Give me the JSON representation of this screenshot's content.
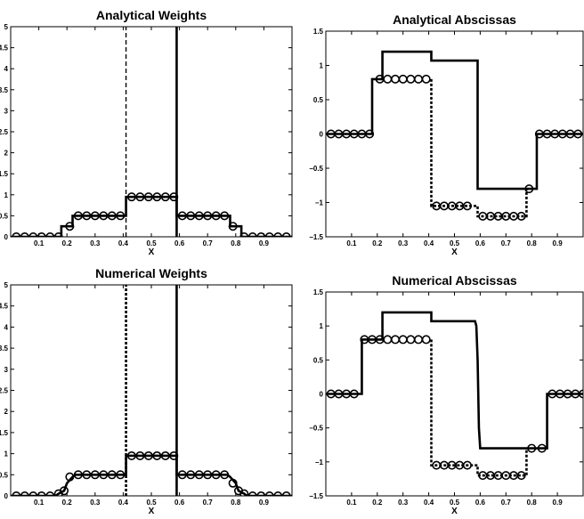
{
  "chart_data": [
    {
      "type": "line",
      "title": "Analytical Weights",
      "xlabel": "X",
      "xlim": [
        0,
        1
      ],
      "ylim": [
        0,
        5
      ],
      "xticks": [
        "0.1",
        "0.2",
        "0.3",
        "0.4",
        "0.5",
        "0.6",
        "0.7",
        "0.8",
        "0.9"
      ],
      "yticks": [
        "0",
        "0.5",
        "1",
        "1.5",
        "2",
        "2.5",
        "3",
        "3.5",
        "4",
        "4.5",
        "5"
      ],
      "series": [
        {
          "style": "solid",
          "x": [
            0,
            0.18,
            0.18,
            0.22,
            0.22,
            0.41,
            0.41,
            0.59,
            0.59,
            0.78,
            0.78,
            0.82,
            0.82,
            1
          ],
          "y": [
            0,
            0,
            0.25,
            0.25,
            0.5,
            0.5,
            0.95,
            0.95,
            0.5,
            0.5,
            0.25,
            0.25,
            0,
            0
          ]
        },
        {
          "style": "solid",
          "x": [
            0.59,
            0.59
          ],
          "y": [
            0,
            5
          ]
        },
        {
          "style": "dashed",
          "x": [
            0.41,
            0.41
          ],
          "y": [
            0,
            5
          ]
        },
        {
          "style": "markers",
          "x": [
            0.02,
            0.05,
            0.08,
            0.11,
            0.14,
            0.17,
            0.21,
            0.24,
            0.27,
            0.3,
            0.33,
            0.36,
            0.39,
            0.43,
            0.46,
            0.49,
            0.52,
            0.55,
            0.58,
            0.61,
            0.64,
            0.67,
            0.7,
            0.73,
            0.76,
            0.79,
            0.83,
            0.86,
            0.89,
            0.92,
            0.95,
            0.98
          ],
          "y": [
            0,
            0,
            0,
            0,
            0,
            0,
            0.25,
            0.5,
            0.5,
            0.5,
            0.5,
            0.5,
            0.5,
            0.95,
            0.95,
            0.95,
            0.95,
            0.95,
            0.95,
            0.5,
            0.5,
            0.5,
            0.5,
            0.5,
            0.5,
            0.25,
            0,
            0,
            0,
            0,
            0,
            0
          ]
        }
      ]
    },
    {
      "type": "line",
      "title": "Analytical Abscissas",
      "xlabel": "X",
      "xlim": [
        0,
        1
      ],
      "ylim": [
        -1.5,
        1.5
      ],
      "xticks": [
        "0.1",
        "0.2",
        "0.3",
        "0.4",
        "0.5",
        "0.6",
        "0.7",
        "0.8",
        "0.9"
      ],
      "yticks": [
        "−1.5",
        "−1",
        "−0.5",
        "0",
        "0.5",
        "1",
        "1.5"
      ],
      "series": [
        {
          "style": "solid",
          "x": [
            0,
            0.18,
            0.18,
            0.22,
            0.22,
            0.41,
            0.41,
            0.59,
            0.59,
            0.78,
            0.78,
            0.82,
            0.82,
            1
          ],
          "y": [
            0,
            0,
            0.8,
            0.8,
            1.2,
            1.2,
            1.07,
            1.07,
            -0.8,
            -0.8,
            -0.8,
            -0.8,
            0,
            0
          ]
        },
        {
          "style": "dotted",
          "x": [
            0.41,
            0.41,
            0.59,
            0.59,
            0.78,
            0.78
          ],
          "y": [
            0.8,
            -1.05,
            -1.05,
            -1.2,
            -1.2,
            -0.8
          ]
        },
        {
          "style": "markers",
          "x": [
            0.02,
            0.05,
            0.08,
            0.11,
            0.14,
            0.17,
            0.21,
            0.24,
            0.27,
            0.3,
            0.33,
            0.36,
            0.39,
            0.43,
            0.46,
            0.49,
            0.52,
            0.55,
            0.61,
            0.64,
            0.67,
            0.7,
            0.73,
            0.76,
            0.79,
            0.83,
            0.86,
            0.89,
            0.92,
            0.95,
            0.98
          ],
          "y": [
            0,
            0,
            0,
            0,
            0,
            0,
            0.8,
            0.8,
            0.8,
            0.8,
            0.8,
            0.8,
            0.8,
            -1.05,
            -1.05,
            -1.05,
            -1.05,
            -1.05,
            -1.2,
            -1.2,
            -1.2,
            -1.2,
            -1.2,
            -1.2,
            -0.8,
            0,
            0,
            0,
            0,
            0,
            0
          ]
        }
      ]
    },
    {
      "type": "line",
      "title": "Numerical Weights",
      "xlabel": "X",
      "xlim": [
        0,
        1
      ],
      "ylim": [
        0,
        5
      ],
      "xticks": [
        "0.1",
        "0.2",
        "0.3",
        "0.4",
        "0.5",
        "0.6",
        "0.7",
        "0.8",
        "0.9"
      ],
      "yticks": [
        "0",
        "0.5",
        "1",
        "1.5",
        "2",
        "2.5",
        "3",
        "3.5",
        "4",
        "4.5",
        "5"
      ],
      "series": [
        {
          "style": "solid",
          "x": [
            0,
            0.16,
            0.17,
            0.19,
            0.2,
            0.22,
            0.23,
            0.41,
            0.41,
            0.59,
            0.59,
            0.77,
            0.78,
            0.8,
            0.81,
            0.83,
            0.84,
            1
          ],
          "y": [
            0,
            0,
            0.05,
            0.12,
            0.3,
            0.45,
            0.5,
            0.5,
            0.95,
            0.95,
            0.5,
            0.5,
            0.45,
            0.3,
            0.12,
            0.05,
            0,
            0
          ]
        },
        {
          "style": "solid",
          "x": [
            0.59,
            0.59
          ],
          "y": [
            0,
            5
          ]
        },
        {
          "style": "dotted",
          "x": [
            0.41,
            0.41
          ],
          "y": [
            0,
            5
          ]
        },
        {
          "style": "markers",
          "x": [
            0.02,
            0.05,
            0.08,
            0.11,
            0.14,
            0.17,
            0.19,
            0.21,
            0.24,
            0.27,
            0.3,
            0.33,
            0.36,
            0.39,
            0.43,
            0.46,
            0.49,
            0.52,
            0.55,
            0.58,
            0.61,
            0.64,
            0.67,
            0.7,
            0.73,
            0.76,
            0.79,
            0.81,
            0.83,
            0.86,
            0.89,
            0.92,
            0.95,
            0.98
          ],
          "y": [
            0,
            0,
            0,
            0,
            0,
            0.05,
            0.12,
            0.45,
            0.5,
            0.5,
            0.5,
            0.5,
            0.5,
            0.5,
            0.95,
            0.95,
            0.95,
            0.95,
            0.95,
            0.95,
            0.5,
            0.5,
            0.5,
            0.5,
            0.5,
            0.5,
            0.3,
            0.12,
            0.05,
            0,
            0,
            0,
            0,
            0
          ]
        }
      ]
    },
    {
      "type": "line",
      "title": "Numerical Abscissas",
      "xlabel": "X",
      "xlim": [
        0,
        1
      ],
      "ylim": [
        -1.5,
        1.5
      ],
      "xticks": [
        "0.1",
        "0.2",
        "0.3",
        "0.4",
        "0.5",
        "0.6",
        "0.7",
        "0.8",
        "0.9"
      ],
      "yticks": [
        "−1.5",
        "−1",
        "−0.5",
        "0",
        "0.5",
        "1",
        "1.5"
      ],
      "series": [
        {
          "style": "solid",
          "x": [
            0,
            0.14,
            0.14,
            0.22,
            0.22,
            0.41,
            0.41,
            0.58,
            0.585,
            0.59,
            0.595,
            0.6,
            0.78,
            0.78,
            0.86,
            0.86,
            1
          ],
          "y": [
            0,
            0,
            0.8,
            0.8,
            1.2,
            1.2,
            1.07,
            1.07,
            1.0,
            0.5,
            -0.5,
            -0.8,
            -0.8,
            -0.8,
            -0.8,
            0,
            0
          ]
        },
        {
          "style": "dotted",
          "x": [
            0.41,
            0.41,
            0.59,
            0.59,
            0.78,
            0.78
          ],
          "y": [
            0.8,
            -1.05,
            -1.05,
            -1.2,
            -1.2,
            -0.8
          ]
        },
        {
          "style": "markers",
          "x": [
            0.02,
            0.05,
            0.08,
            0.11,
            0.15,
            0.18,
            0.21,
            0.24,
            0.27,
            0.3,
            0.33,
            0.36,
            0.39,
            0.43,
            0.46,
            0.49,
            0.52,
            0.55,
            0.61,
            0.64,
            0.67,
            0.7,
            0.73,
            0.76,
            0.8,
            0.84,
            0.88,
            0.91,
            0.94,
            0.97,
            1.0
          ],
          "y": [
            0,
            0,
            0,
            0,
            0.8,
            0.8,
            0.8,
            0.8,
            0.8,
            0.8,
            0.8,
            0.8,
            0.8,
            -1.05,
            -1.05,
            -1.05,
            -1.05,
            -1.05,
            -1.2,
            -1.2,
            -1.2,
            -1.2,
            -1.2,
            -1.2,
            -0.8,
            -0.8,
            0,
            0,
            0,
            0,
            0
          ]
        }
      ]
    }
  ]
}
